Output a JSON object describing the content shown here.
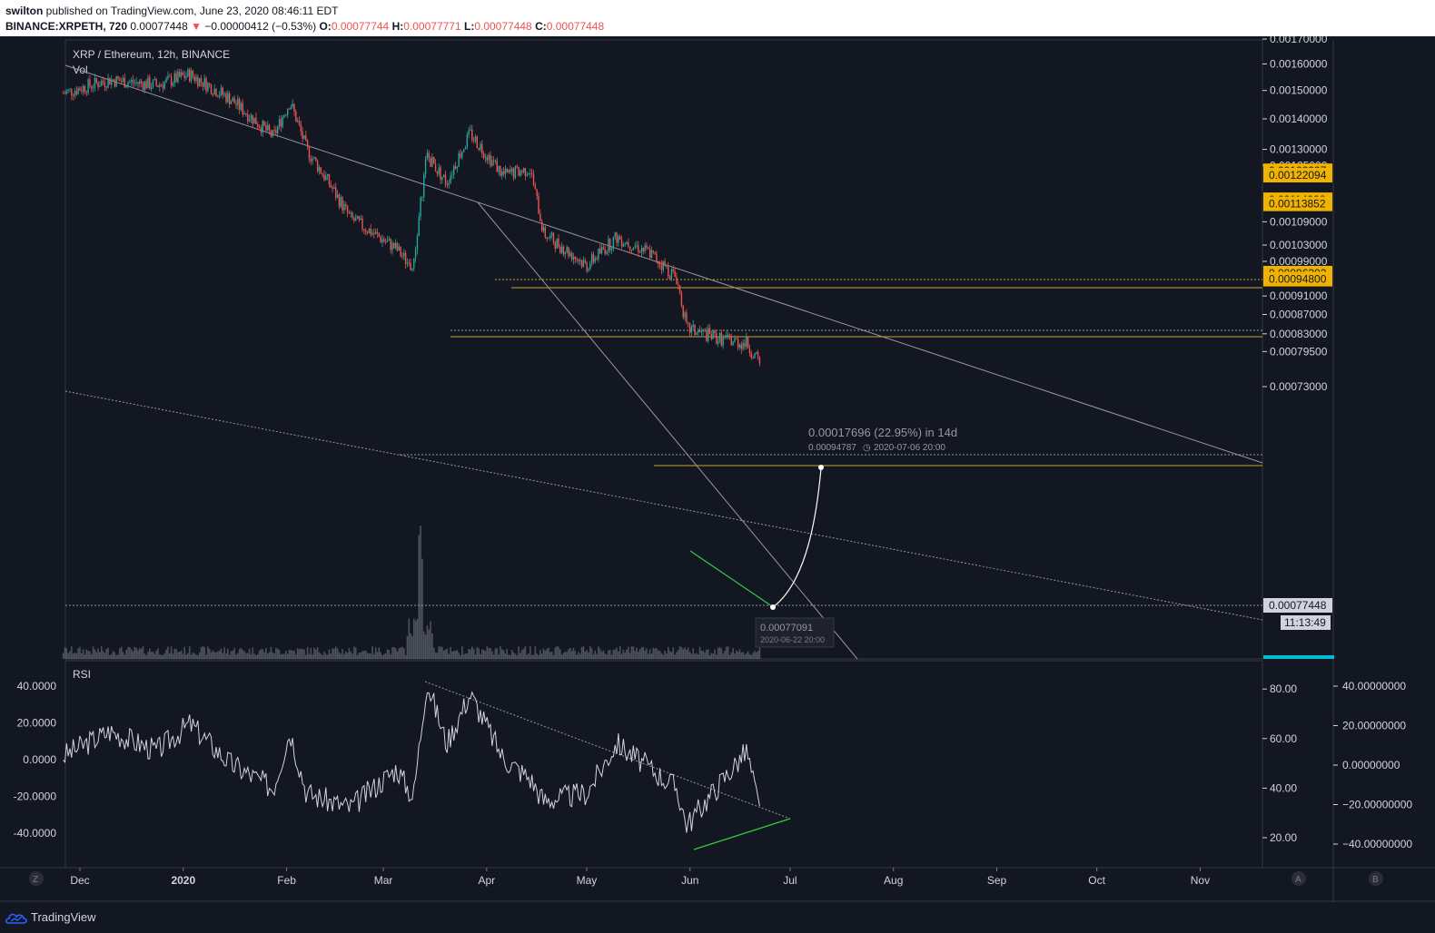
{
  "header": {
    "publisher": "swilton",
    "published_text": " published on TradingView.com, June 23, 2020 08:46:11 EDT",
    "symbol_line": "BINANCE:XRPETH, 720",
    "last": "0.00077448",
    "change": "−0.00000412 (−0.53%)",
    "o_label": "O:",
    "o": "0.00077744",
    "h_label": "H:",
    "h": "0.00077771",
    "l_label": "L:",
    "l": "0.00077448",
    "c_label": "C:",
    "c": "0.00077448"
  },
  "footer": {
    "brand": "TradingView"
  },
  "colors": {
    "bg": "#131722",
    "up": "#26a69a",
    "down": "#ef5350",
    "grid": "#363a45",
    "highlight": "#f0b400",
    "green": "#2ecc40",
    "cyan": "#00bcd4"
  },
  "chart_data": [
    {
      "type": "candlestick",
      "title": "XRP / Ethereum, 12h, BINANCE",
      "volume_label": "Vol",
      "y_scale": "log",
      "y_ticks": [
        "0.00170000",
        "0.00160000",
        "0.00150000",
        "0.00140000",
        "0.00130000",
        "0.00125000",
        "0.00109000",
        "0.00103000",
        "0.00099000",
        "0.00091000",
        "0.00087000",
        "0.00083000",
        "0.00079500",
        "0.00073000"
      ],
      "x_ticks": [
        "Dec",
        "2020",
        "Feb",
        "Mar",
        "Apr",
        "May",
        "Jun",
        "Jul",
        "Aug",
        "Sep",
        "Oct",
        "Nov"
      ],
      "price_path": [
        [
          "2019-11-26",
          0.00149
        ],
        [
          "2019-12-10",
          0.00154
        ],
        [
          "2019-12-24",
          0.00152
        ],
        [
          "2020-01-03",
          0.00156
        ],
        [
          "2020-01-15",
          0.00147
        ],
        [
          "2020-01-28",
          0.00134
        ],
        [
          "2020-02-02",
          0.00146
        ],
        [
          "2020-02-07",
          0.0013
        ],
        [
          "2020-02-20",
          0.0011
        ],
        [
          "2020-03-05",
          0.00102
        ],
        [
          "2020-03-10",
          0.00097
        ],
        [
          "2020-03-14",
          0.00128
        ],
        [
          "2020-03-20",
          0.0012
        ],
        [
          "2020-03-27",
          0.00135
        ],
        [
          "2020-04-06",
          0.00122
        ],
        [
          "2020-04-14",
          0.00124
        ],
        [
          "2020-04-18",
          0.00106
        ],
        [
          "2020-05-01",
          0.00098
        ],
        [
          "2020-05-10",
          0.00105
        ],
        [
          "2020-05-20",
          0.00101
        ],
        [
          "2020-05-28",
          0.00095
        ],
        [
          "2020-05-31",
          0.00084
        ],
        [
          "2020-06-10",
          0.00082
        ],
        [
          "2020-06-18",
          0.00081
        ],
        [
          "2020-06-22",
          0.00077
        ]
      ],
      "highlighted_levels": [
        "0.00123397",
        "0.00122094",
        "0.00114998",
        "0.00113852",
        "0.00096202",
        "0.00094800"
      ],
      "last_price_label": "0.00077448",
      "countdown": "11:13:49",
      "low_callout": {
        "value": "0.00077091",
        "date": "2020-06-22 20:00"
      },
      "projection": {
        "title": "0.00017696 (22.95%) in 14d",
        "target": "0.00094787",
        "date": "2020-07-06  20:00"
      }
    },
    {
      "type": "line",
      "title": "RSI",
      "left_ticks": [
        "40.0000",
        "20.0000",
        "0.0000",
        "-20.0000",
        "-40.0000"
      ],
      "right_ticks": [
        "80.00",
        "60.00",
        "40.00",
        "20.00"
      ],
      "far_right_ticks": [
        "40.00000000",
        "20.00000000",
        "0.00000000",
        "−20.00000000",
        "−40.00000000"
      ],
      "rsi_path": [
        [
          "2019-11-26",
          53
        ],
        [
          "2019-12-10",
          63
        ],
        [
          "2019-12-24",
          55
        ],
        [
          "2020-01-03",
          66
        ],
        [
          "2020-01-15",
          50
        ],
        [
          "2020-01-28",
          40
        ],
        [
          "2020-02-02",
          63
        ],
        [
          "2020-02-07",
          38
        ],
        [
          "2020-02-20",
          32
        ],
        [
          "2020-03-05",
          48
        ],
        [
          "2020-03-10",
          36
        ],
        [
          "2020-03-14",
          83
        ],
        [
          "2020-03-20",
          58
        ],
        [
          "2020-03-27",
          78
        ],
        [
          "2020-04-06",
          52
        ],
        [
          "2020-04-14",
          44
        ],
        [
          "2020-04-18",
          35
        ],
        [
          "2020-05-01",
          38
        ],
        [
          "2020-05-10",
          58
        ],
        [
          "2020-05-20",
          48
        ],
        [
          "2020-05-28",
          40
        ],
        [
          "2020-05-31",
          25
        ],
        [
          "2020-06-10",
          42
        ],
        [
          "2020-06-18",
          55
        ],
        [
          "2020-06-22",
          30
        ]
      ],
      "scale_buttons": {
        "left": "Z",
        "right_a": "A",
        "right_b": "B"
      }
    }
  ]
}
